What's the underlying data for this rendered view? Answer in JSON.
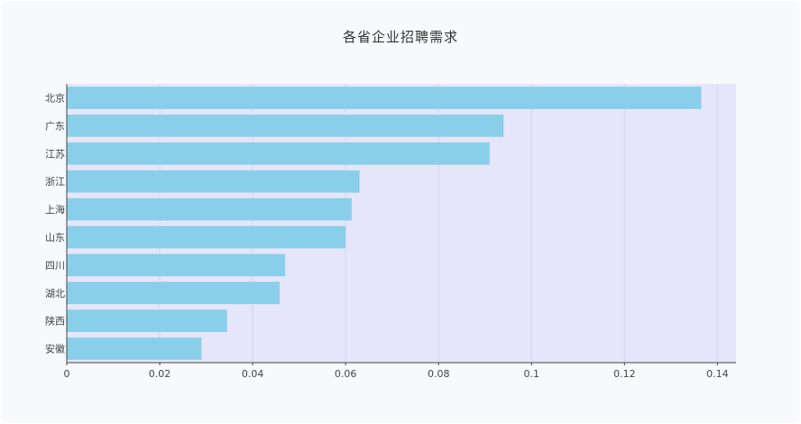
{
  "chart_data": {
    "type": "bar",
    "orientation": "horizontal",
    "title": "各省企业招聘需求",
    "xlabel": "",
    "ylabel": "",
    "categories": [
      "北京",
      "广东",
      "江苏",
      "浙江",
      "上海",
      "山东",
      "四川",
      "湖北",
      "陕西",
      "安徽"
    ],
    "values": [
      0.1365,
      0.094,
      0.091,
      0.063,
      0.0613,
      0.06,
      0.047,
      0.0458,
      0.0345,
      0.029
    ],
    "xlim": [
      0,
      0.144
    ],
    "xticks": [
      0,
      0.02,
      0.04,
      0.06,
      0.08,
      0.1,
      0.12,
      0.14
    ],
    "xtick_labels": [
      "0",
      "0.02",
      "0.04",
      "0.06",
      "0.08",
      "0.1",
      "0.12",
      "0.14"
    ],
    "grid": true,
    "colors": {
      "bar": "#89cfea",
      "plot_bg": "#e6e6fa",
      "grid": "#d6d3ee",
      "page_bg": "#f8f9fd"
    }
  }
}
